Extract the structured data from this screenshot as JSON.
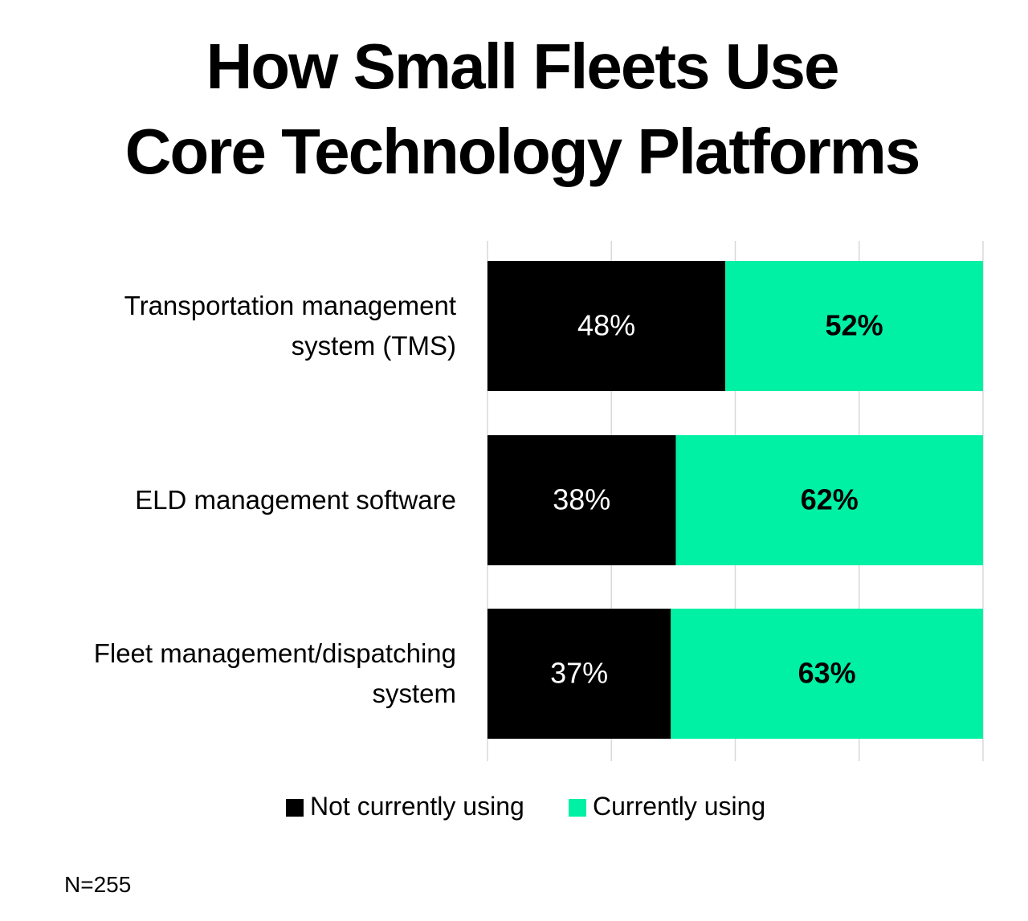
{
  "chart_data": {
    "type": "stacked-barh",
    "title": "How Small Fleets Use\nCore Technology Platforms",
    "categories": [
      "Transportation management\nsystem (TMS)",
      "ELD management software",
      "Fleet management/dispatching\nsystem"
    ],
    "series": [
      {
        "name": "Not currently using",
        "color": "#000000",
        "values": [
          48,
          38,
          37
        ],
        "value_labels": [
          "48%",
          "38%",
          "37%"
        ]
      },
      {
        "name": "Currently using",
        "color": "#00f0a4",
        "values": [
          52,
          62,
          63
        ],
        "value_labels": [
          "52%",
          "62%",
          "63%"
        ]
      }
    ],
    "xlim": [
      0,
      100
    ],
    "xticks": [
      0,
      25,
      50,
      75,
      100
    ],
    "grid": true,
    "note": "N=255"
  }
}
